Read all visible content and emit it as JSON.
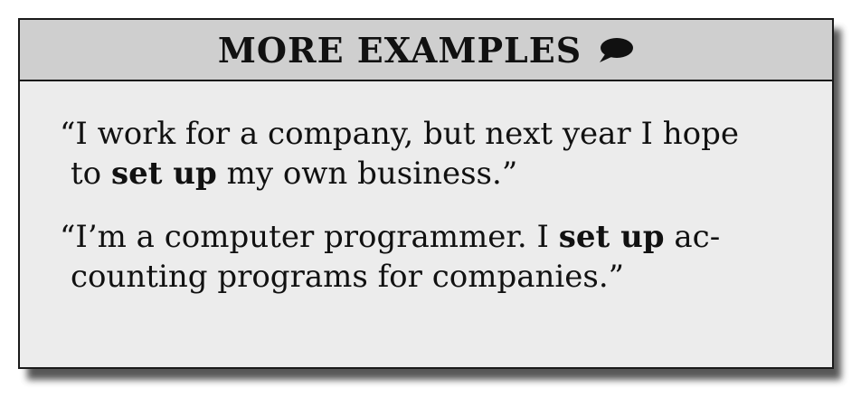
{
  "header": {
    "title": "MORE EXAMPLES",
    "icon": "speech-bubble-icon"
  },
  "examples": [
    {
      "lines": [
        {
          "before": "“I work for a company, but next year I hope",
          "bold": "",
          "after": ""
        },
        {
          "before": "to ",
          "bold": "set up",
          "after": " my own business.”"
        }
      ]
    },
    {
      "lines": [
        {
          "before": "“I’m a computer programmer. I ",
          "bold": "set up",
          "after": " ac-"
        },
        {
          "before": "counting programs for companies.”",
          "bold": "",
          "after": ""
        }
      ]
    }
  ]
}
